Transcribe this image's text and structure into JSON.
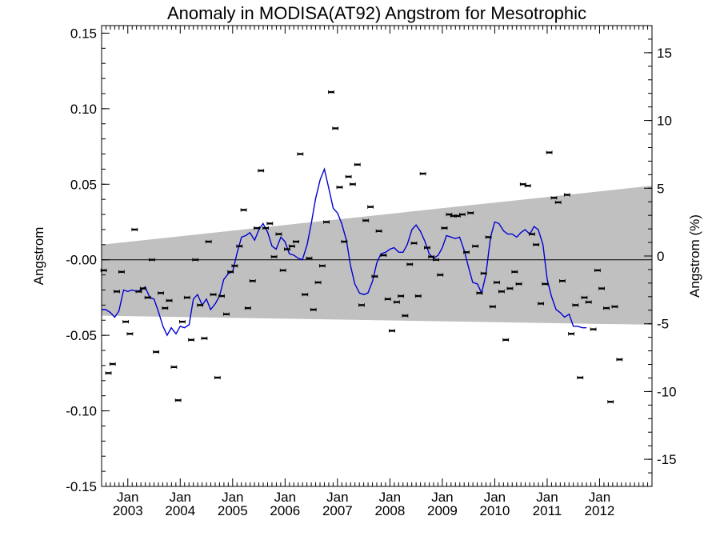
{
  "chart_data": {
    "type": "scatter",
    "title": "Anomaly in MODISA(AT92) Angstrom for Mesotrophic",
    "ylabel": "Angstrom",
    "ylabel_right": "Angstrom (%)",
    "ylim": [
      -0.15,
      0.155
    ],
    "ylim_right": [
      -17,
      17
    ],
    "xlim": [
      2002.5,
      2013.0
    ],
    "yticks": [
      "-0.15",
      "-0.10",
      "-0.05",
      "-0.00",
      "0.05",
      "0.10",
      "0.15"
    ],
    "yticks_right": [
      "-15",
      "-10",
      "-5",
      "0",
      "5",
      "10",
      "15"
    ],
    "xticks": [
      {
        "month": "Jan",
        "year": "2003"
      },
      {
        "month": "Jan",
        "year": "2004"
      },
      {
        "month": "Jan",
        "year": "2005"
      },
      {
        "month": "Jan",
        "year": "2006"
      },
      {
        "month": "Jan",
        "year": "2007"
      },
      {
        "month": "Jan",
        "year": "2008"
      },
      {
        "month": "Jan",
        "year": "2009"
      },
      {
        "month": "Jan",
        "year": "2010"
      },
      {
        "month": "Jan",
        "year": "2011"
      },
      {
        "month": "Jan",
        "year": "2012"
      }
    ],
    "band": {
      "lower": [
        -0.037,
        -0.043
      ],
      "upper": [
        0.01,
        0.049
      ],
      "color": "#c0c0c0"
    },
    "zero_line": 0,
    "line_color": "#0000d0",
    "marker_color": "#000000",
    "points": [
      [
        2002.54,
        -0.007
      ],
      [
        2002.63,
        -0.075
      ],
      [
        2002.71,
        -0.069
      ],
      [
        2002.79,
        -0.021
      ],
      [
        2002.88,
        -0.008
      ],
      [
        2002.96,
        -0.041
      ],
      [
        2003.04,
        -0.049
      ],
      [
        2003.13,
        0.02
      ],
      [
        2003.21,
        -0.021
      ],
      [
        2003.29,
        -0.019
      ],
      [
        2003.38,
        -0.025
      ],
      [
        2003.46,
        0.0
      ],
      [
        2003.54,
        -0.061
      ],
      [
        2003.63,
        -0.022
      ],
      [
        2003.71,
        -0.032
      ],
      [
        2003.79,
        -0.027
      ],
      [
        2003.88,
        -0.071
      ],
      [
        2003.96,
        -0.093
      ],
      [
        2004.04,
        -0.041
      ],
      [
        2004.13,
        -0.025
      ],
      [
        2004.21,
        -0.053
      ],
      [
        2004.29,
        0.0
      ],
      [
        2004.38,
        -0.03
      ],
      [
        2004.46,
        -0.052
      ],
      [
        2004.54,
        0.012
      ],
      [
        2004.63,
        -0.023
      ],
      [
        2004.71,
        -0.078
      ],
      [
        2004.79,
        -0.024
      ],
      [
        2004.88,
        -0.036
      ],
      [
        2004.96,
        -0.008
      ],
      [
        2005.04,
        -0.004
      ],
      [
        2005.13,
        0.009
      ],
      [
        2005.21,
        0.033
      ],
      [
        2005.29,
        -0.032
      ],
      [
        2005.38,
        -0.014
      ],
      [
        2005.46,
        0.021
      ],
      [
        2005.54,
        0.059
      ],
      [
        2005.63,
        0.021
      ],
      [
        2005.71,
        0.024
      ],
      [
        2005.79,
        0.002
      ],
      [
        2005.88,
        0.017
      ],
      [
        2005.96,
        -0.007
      ],
      [
        2006.04,
        0.007
      ],
      [
        2006.13,
        0.009
      ],
      [
        2006.21,
        0.012
      ],
      [
        2006.29,
        0.07
      ],
      [
        2006.38,
        -0.023
      ],
      [
        2006.46,
        0.001
      ],
      [
        2006.54,
        -0.033
      ],
      [
        2006.63,
        -0.015
      ],
      [
        2006.71,
        -0.004
      ],
      [
        2006.79,
        0.025
      ],
      [
        2006.88,
        0.111
      ],
      [
        2006.96,
        0.087
      ],
      [
        2007.04,
        0.048
      ],
      [
        2007.13,
        0.012
      ],
      [
        2007.21,
        0.055
      ],
      [
        2007.29,
        0.05
      ],
      [
        2007.38,
        0.063
      ],
      [
        2007.46,
        -0.03
      ],
      [
        2007.54,
        0.026
      ],
      [
        2007.63,
        0.035
      ],
      [
        2007.71,
        -0.011
      ],
      [
        2007.79,
        0.019
      ],
      [
        2007.88,
        0.003
      ],
      [
        2007.96,
        -0.026
      ],
      [
        2008.04,
        -0.047
      ],
      [
        2008.13,
        -0.028
      ],
      [
        2008.21,
        -0.024
      ],
      [
        2008.29,
        -0.037
      ],
      [
        2008.38,
        -0.003
      ],
      [
        2008.46,
        0.011
      ],
      [
        2008.54,
        -0.024
      ],
      [
        2008.63,
        0.057
      ],
      [
        2008.71,
        0.008
      ],
      [
        2008.79,
        0.002
      ],
      [
        2008.88,
        0.0
      ],
      [
        2008.96,
        -0.01
      ],
      [
        2009.04,
        0.021
      ],
      [
        2009.13,
        0.03
      ],
      [
        2009.21,
        0.029
      ],
      [
        2009.29,
        0.029
      ],
      [
        2009.38,
        0.03
      ],
      [
        2009.46,
        0.005
      ],
      [
        2009.54,
        0.031
      ],
      [
        2009.63,
        0.009
      ],
      [
        2009.71,
        -0.022
      ],
      [
        2009.79,
        -0.009
      ],
      [
        2009.88,
        0.015
      ],
      [
        2009.96,
        -0.031
      ],
      [
        2010.04,
        -0.015
      ],
      [
        2010.13,
        -0.021
      ],
      [
        2010.21,
        -0.053
      ],
      [
        2010.29,
        -0.019
      ],
      [
        2010.38,
        -0.008
      ],
      [
        2010.46,
        -0.016
      ],
      [
        2010.54,
        0.05
      ],
      [
        2010.63,
        0.049
      ],
      [
        2010.71,
        0.017
      ],
      [
        2010.79,
        0.01
      ],
      [
        2010.88,
        -0.029
      ],
      [
        2010.96,
        -0.016
      ],
      [
        2011.04,
        0.071
      ],
      [
        2011.13,
        0.041
      ],
      [
        2011.21,
        0.038
      ],
      [
        2011.29,
        -0.014
      ],
      [
        2011.38,
        0.043
      ],
      [
        2011.46,
        -0.049
      ],
      [
        2011.54,
        -0.03
      ],
      [
        2011.63,
        -0.078
      ],
      [
        2011.71,
        -0.025
      ],
      [
        2011.79,
        -0.028
      ],
      [
        2011.88,
        -0.046
      ],
      [
        2011.96,
        -0.007
      ],
      [
        2012.04,
        -0.019
      ],
      [
        2012.13,
        -0.032
      ],
      [
        2012.21,
        -0.094
      ],
      [
        2012.29,
        -0.031
      ],
      [
        2012.38,
        -0.066
      ]
    ],
    "line": [
      [
        2002.5,
        -0.033
      ],
      [
        2002.58,
        -0.033
      ],
      [
        2002.67,
        -0.035
      ],
      [
        2002.75,
        -0.038
      ],
      [
        2002.83,
        -0.034
      ],
      [
        2002.92,
        -0.02
      ],
      [
        2003.0,
        -0.021
      ],
      [
        2003.08,
        -0.02
      ],
      [
        2003.17,
        -0.021
      ],
      [
        2003.25,
        -0.02
      ],
      [
        2003.33,
        -0.018
      ],
      [
        2003.42,
        -0.025
      ],
      [
        2003.5,
        -0.026
      ],
      [
        2003.58,
        -0.034
      ],
      [
        2003.67,
        -0.044
      ],
      [
        2003.75,
        -0.05
      ],
      [
        2003.83,
        -0.045
      ],
      [
        2003.92,
        -0.049
      ],
      [
        2004.0,
        -0.044
      ],
      [
        2004.08,
        -0.045
      ],
      [
        2004.17,
        -0.043
      ],
      [
        2004.25,
        -0.026
      ],
      [
        2004.33,
        -0.023
      ],
      [
        2004.42,
        -0.03
      ],
      [
        2004.5,
        -0.026
      ],
      [
        2004.58,
        -0.033
      ],
      [
        2004.67,
        -0.029
      ],
      [
        2004.75,
        -0.024
      ],
      [
        2004.83,
        -0.013
      ],
      [
        2004.92,
        -0.009
      ],
      [
        2005.0,
        -0.008
      ],
      [
        2005.08,
        0.004
      ],
      [
        2005.17,
        0.015
      ],
      [
        2005.25,
        0.016
      ],
      [
        2005.33,
        0.018
      ],
      [
        2005.42,
        0.013
      ],
      [
        2005.5,
        0.02
      ],
      [
        2005.58,
        0.024
      ],
      [
        2005.67,
        0.018
      ],
      [
        2005.75,
        0.009
      ],
      [
        2005.83,
        0.007
      ],
      [
        2005.92,
        0.015
      ],
      [
        2006.0,
        0.012
      ],
      [
        2006.08,
        0.004
      ],
      [
        2006.17,
        0.003
      ],
      [
        2006.25,
        0.001
      ],
      [
        2006.33,
        0.0
      ],
      [
        2006.42,
        0.01
      ],
      [
        2006.5,
        0.024
      ],
      [
        2006.58,
        0.04
      ],
      [
        2006.67,
        0.053
      ],
      [
        2006.75,
        0.06
      ],
      [
        2006.83,
        0.048
      ],
      [
        2006.92,
        0.034
      ],
      [
        2007.0,
        0.031
      ],
      [
        2007.08,
        0.024
      ],
      [
        2007.17,
        0.013
      ],
      [
        2007.25,
        -0.004
      ],
      [
        2007.33,
        -0.016
      ],
      [
        2007.42,
        -0.022
      ],
      [
        2007.5,
        -0.023
      ],
      [
        2007.58,
        -0.022
      ],
      [
        2007.67,
        -0.014
      ],
      [
        2007.75,
        -0.002
      ],
      [
        2007.83,
        0.004
      ],
      [
        2007.92,
        0.005
      ],
      [
        2008.0,
        0.007
      ],
      [
        2008.08,
        0.008
      ],
      [
        2008.17,
        0.005
      ],
      [
        2008.25,
        0.005
      ],
      [
        2008.33,
        0.01
      ],
      [
        2008.42,
        0.02
      ],
      [
        2008.5,
        0.023
      ],
      [
        2008.58,
        0.019
      ],
      [
        2008.67,
        0.012
      ],
      [
        2008.75,
        0.004
      ],
      [
        2008.83,
        0.001
      ],
      [
        2008.92,
        0.003
      ],
      [
        2009.0,
        0.008
      ],
      [
        2009.08,
        0.016
      ],
      [
        2009.17,
        0.015
      ],
      [
        2009.25,
        0.014
      ],
      [
        2009.33,
        0.015
      ],
      [
        2009.42,
        0.006
      ],
      [
        2009.5,
        -0.005
      ],
      [
        2009.58,
        -0.015
      ],
      [
        2009.67,
        -0.016
      ],
      [
        2009.75,
        -0.022
      ],
      [
        2009.83,
        -0.01
      ],
      [
        2009.92,
        0.015
      ],
      [
        2010.0,
        0.025
      ],
      [
        2010.08,
        0.024
      ],
      [
        2010.17,
        0.019
      ],
      [
        2010.25,
        0.017
      ],
      [
        2010.33,
        0.017
      ],
      [
        2010.42,
        0.015
      ],
      [
        2010.5,
        0.018
      ],
      [
        2010.58,
        0.02
      ],
      [
        2010.67,
        0.017
      ],
      [
        2010.75,
        0.022
      ],
      [
        2010.83,
        0.02
      ],
      [
        2010.92,
        0.01
      ],
      [
        2011.0,
        -0.013
      ],
      [
        2011.08,
        -0.024
      ],
      [
        2011.17,
        -0.033
      ],
      [
        2011.25,
        -0.035
      ],
      [
        2011.33,
        -0.038
      ],
      [
        2011.42,
        -0.036
      ],
      [
        2011.5,
        -0.044
      ],
      [
        2011.58,
        -0.044
      ],
      [
        2011.67,
        -0.045
      ],
      [
        2011.75,
        -0.045
      ]
    ]
  }
}
